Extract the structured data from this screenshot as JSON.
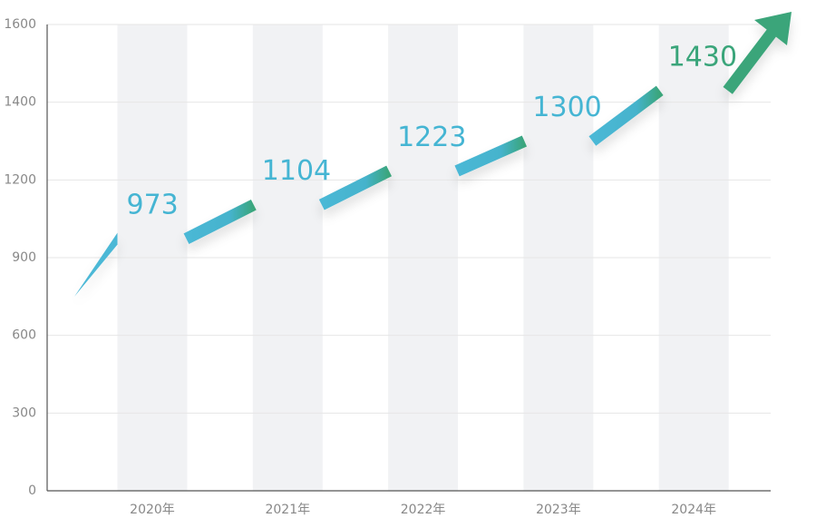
{
  "chart_data": {
    "type": "step-line",
    "categories": [
      "2020年",
      "2021年",
      "2022年",
      "2023年",
      "2024年"
    ],
    "series": [
      {
        "values": [
          973,
          1104,
          1223,
          1300,
          1430
        ],
        "color": "#45b5d3",
        "highlight_color": "#3aa57a"
      }
    ],
    "ylim": [
      0,
      1600
    ],
    "yticks": [
      0,
      300,
      600,
      900,
      1200,
      1400,
      1600
    ],
    "grid": true
  }
}
